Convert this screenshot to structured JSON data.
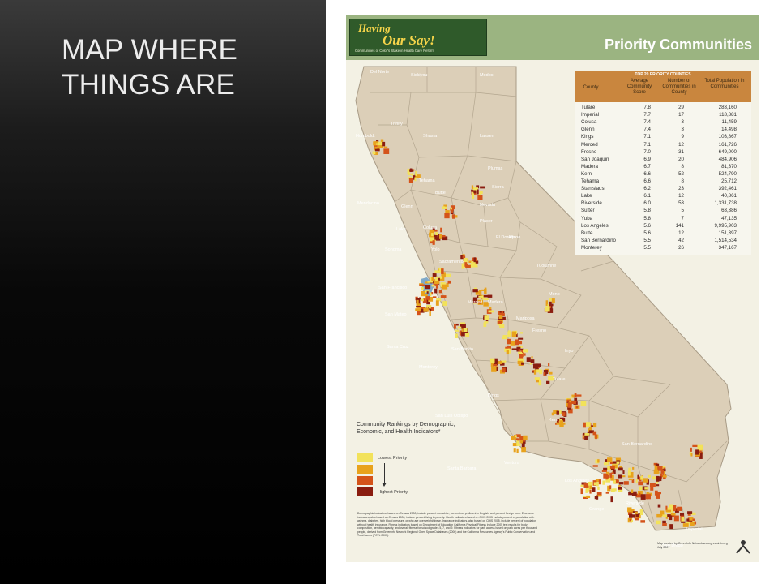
{
  "slide": {
    "title": "MAP WHERE THINGS ARE"
  },
  "poster": {
    "logo_line1": "Having",
    "logo_line2": "Our Say!",
    "logo_tagline": "Communities of Color's Stake in Health Care Reform",
    "title": "Priority Communities"
  },
  "table": {
    "title": "TOP 20 PRIORITY COUNTIES",
    "headers": [
      "County",
      "Average Community Score",
      "Number of Communities in County",
      "Total Population in Communities"
    ],
    "rows": [
      [
        "Tulare",
        "7.8",
        "29",
        "283,160"
      ],
      [
        "Imperial",
        "7.7",
        "17",
        "118,881"
      ],
      [
        "Colusa",
        "7.4",
        "3",
        "11,459"
      ],
      [
        "Glenn",
        "7.4",
        "3",
        "14,498"
      ],
      [
        "Kings",
        "7.1",
        "9",
        "103,867"
      ],
      [
        "Merced",
        "7.1",
        "12",
        "161,726"
      ],
      [
        "Fresno",
        "7.0",
        "31",
        "649,000"
      ],
      [
        "San Joaquin",
        "6.9",
        "20",
        "484,906"
      ],
      [
        "Madera",
        "6.7",
        "8",
        "81,370"
      ],
      [
        "Kern",
        "6.6",
        "52",
        "524,790"
      ],
      [
        "Tehama",
        "6.6",
        "8",
        "25,712"
      ],
      [
        "Stanislaus",
        "6.2",
        "23",
        "392,461"
      ],
      [
        "Lake",
        "6.1",
        "12",
        "40,861"
      ],
      [
        "Riverside",
        "6.0",
        "53",
        "1,331,738"
      ],
      [
        "Sutter",
        "5.8",
        "5",
        "63,386"
      ],
      [
        "Yuba",
        "5.8",
        "7",
        "47,135"
      ],
      [
        "Los Angeles",
        "5.6",
        "141",
        "9,995,903"
      ],
      [
        "Butte",
        "5.6",
        "12",
        "151,397"
      ],
      [
        "San Bernardino",
        "5.5",
        "42",
        "1,514,534"
      ],
      [
        "Monterey",
        "5.5",
        "26",
        "347,167"
      ]
    ]
  },
  "legend": {
    "title": "Community Rankings by Demographic, Economic, and Health Indicators*",
    "lowest": "Lowest Priority",
    "highest": "Highest Priority",
    "colors": [
      "#f2e25a",
      "#e8a21c",
      "#d4531a",
      "#8a1d10"
    ]
  },
  "map_colors": {
    "land": "#dccfb8",
    "border": "#a89b86",
    "ocean": "#f3f1e4",
    "header": "#9bb481"
  },
  "county_labels": [
    "Del Norte",
    "Siskiyou",
    "Modoc",
    "Humboldt",
    "Trinity",
    "Shasta",
    "Lassen",
    "Tehama",
    "Plumas",
    "Mendocino",
    "Glenn",
    "Butte",
    "Sierra",
    "Lake",
    "Colusa",
    "Nevada",
    "Placer",
    "Sonoma",
    "Yolo",
    "Sacramento",
    "El Dorado",
    "Alpine",
    "San Francisco",
    "Tuolumne",
    "Mono",
    "San Mateo",
    "Mariposa",
    "Santa Cruz",
    "Merced",
    "Madera",
    "Fresno",
    "Monterey",
    "San Benito",
    "Inyo",
    "Tulare",
    "Kings",
    "San Luis Obispo",
    "Kern",
    "San Bernardino",
    "Santa Barbara",
    "Ventura",
    "Los Angeles",
    "Riverside",
    "Orange",
    "San Diego",
    "Imperial"
  ],
  "footnote": "Demographic indicators, based on Census 2000, include percent non-white, percent not proficient in English, and percent foreign born. Economic indicators, also based on Census 2000, include percent living in poverty. Health indicators based on CHIS 2005 include percent of population with asthma, diabetes, high blood pressure, or who are overweight/obese. Insurance indicators, also based on CHIS 2005, include percent of population without health insurance. Fitness indicators based on Department of Education California Physical Fitness include 2005 test results for body composition, aerobic capacity, and overall fitness for school grades 5, 7, and 9. Fitness indicators for park access based on park acres per thousand people, derived from GreenInfo Network Regional Open Space Databases (2006) and the California Resources Agency's Public Conservation and Trust Lands (PCTL 2003).",
  "credit": "Map created by GreenInfo Network www.greeninfo.org July 2007"
}
